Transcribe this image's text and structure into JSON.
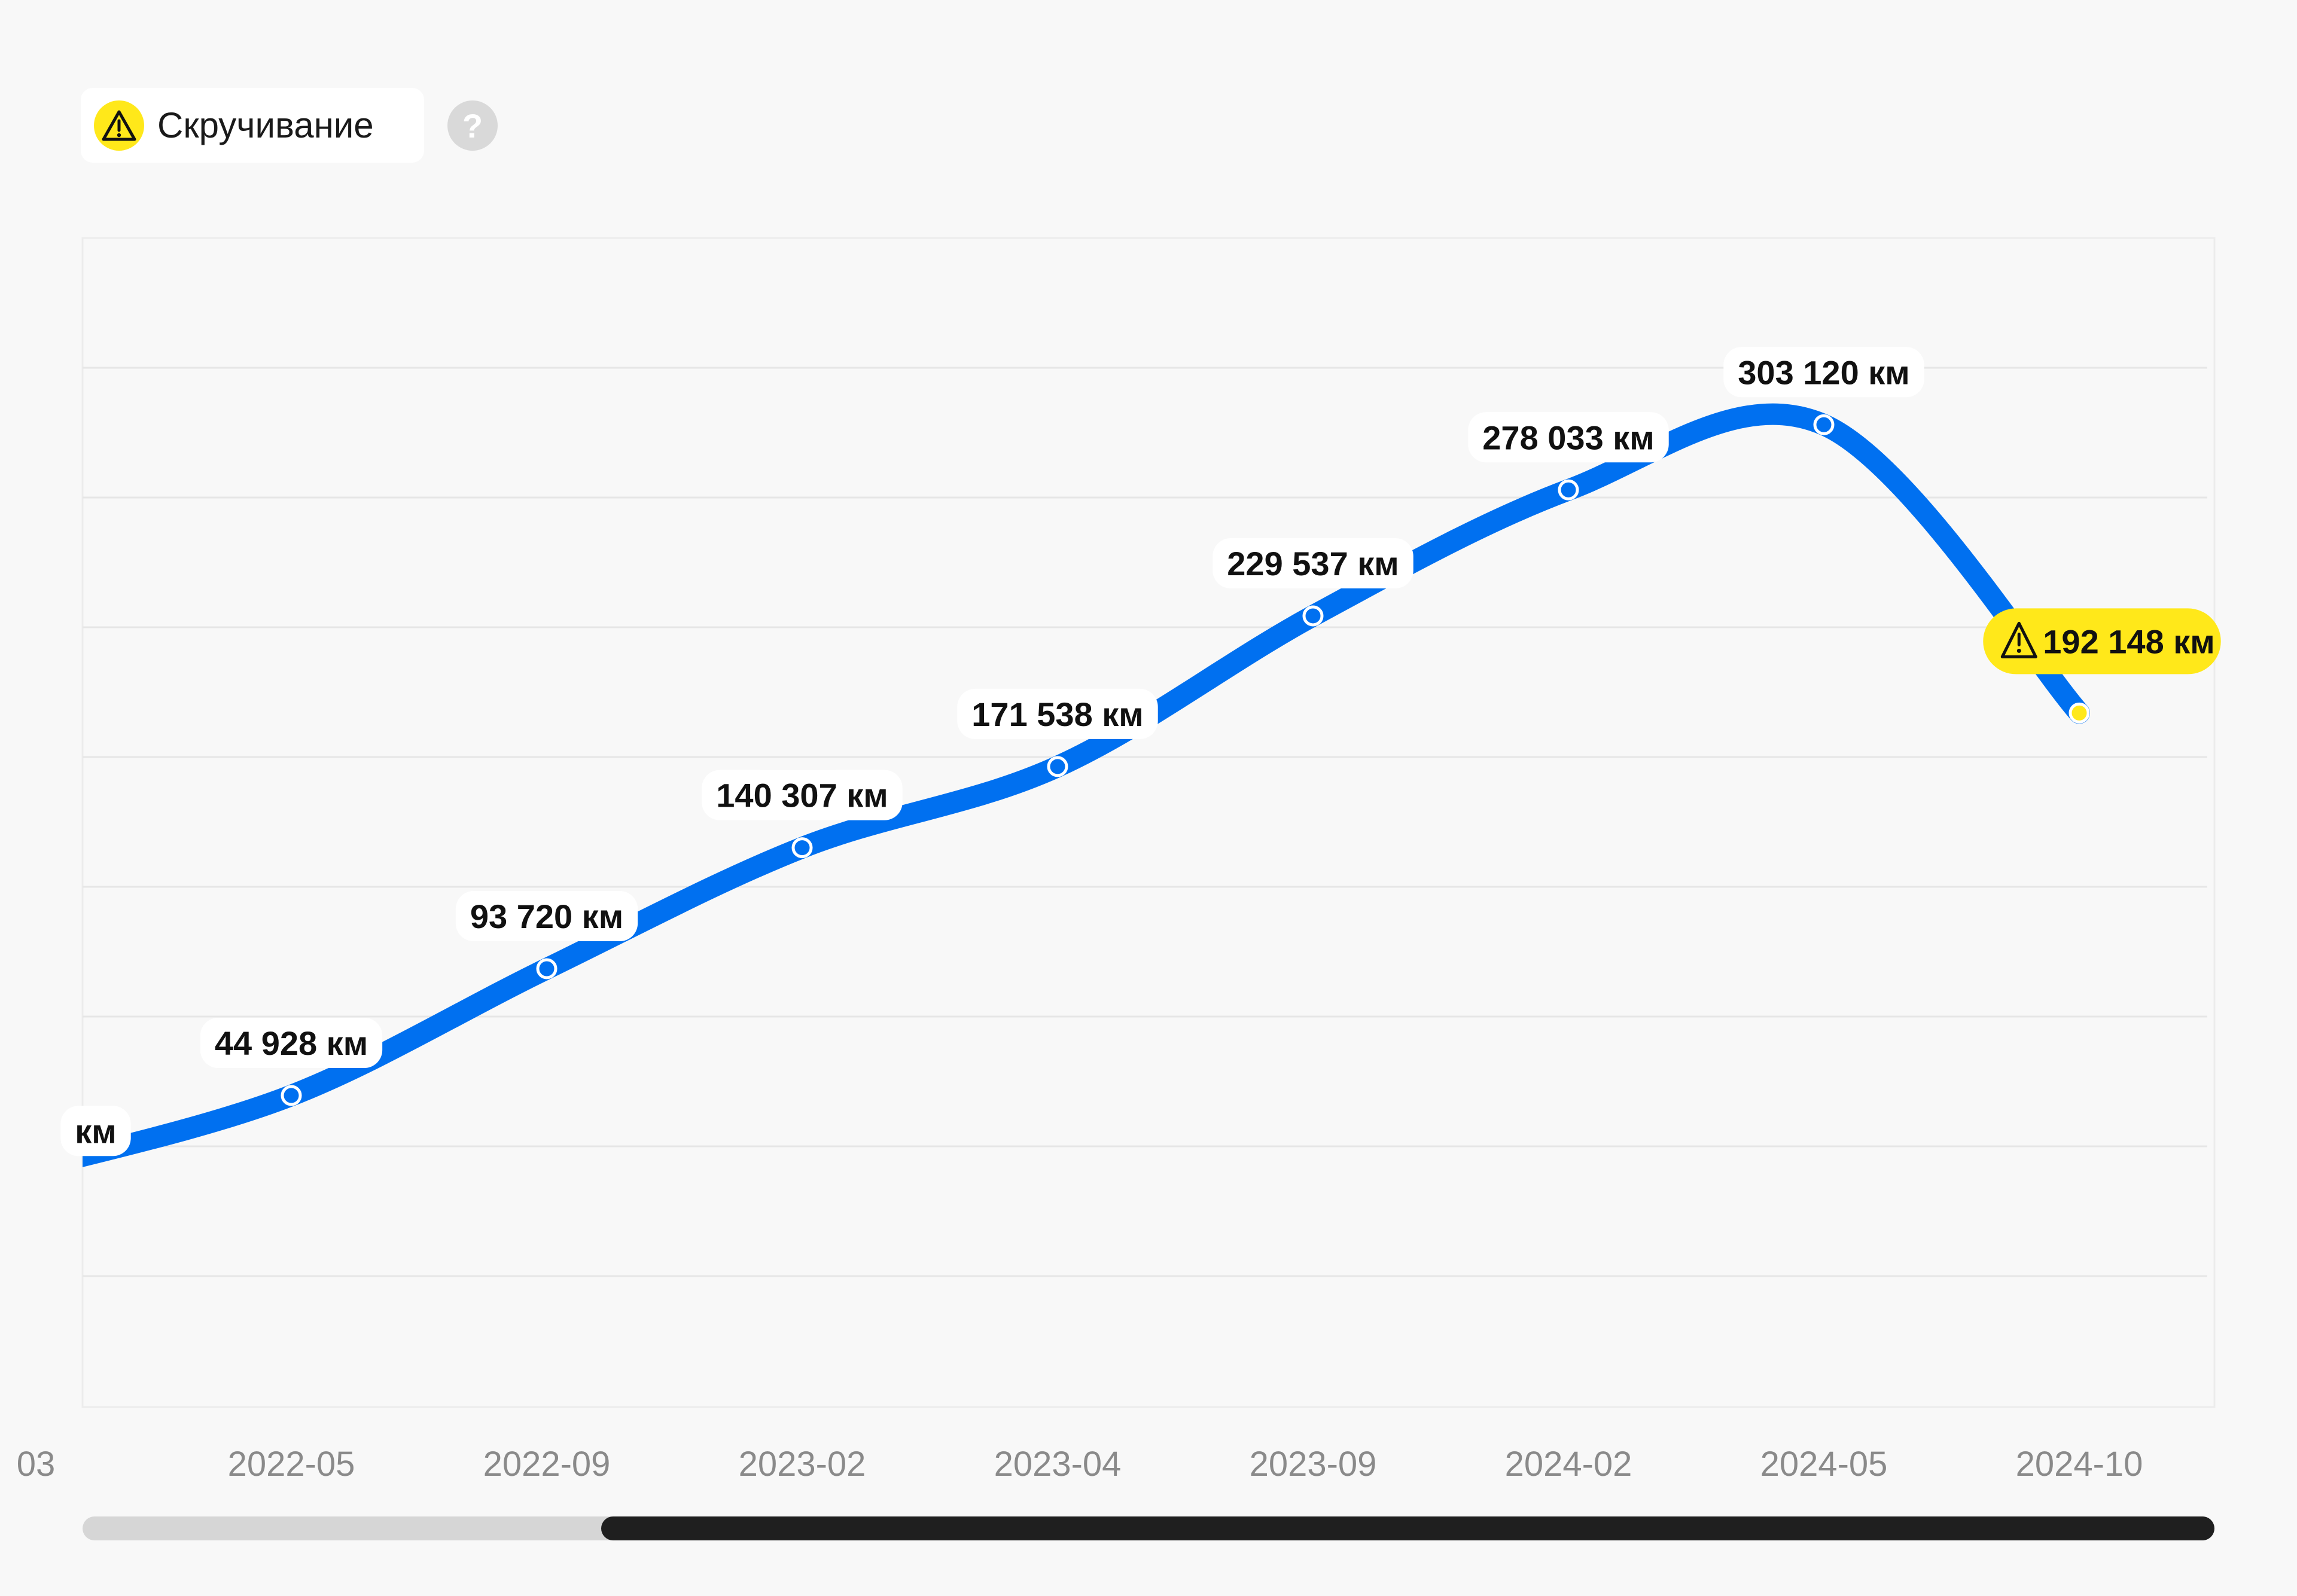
{
  "header": {
    "badge_label": "Скручивание",
    "badge_icon": "warning-icon",
    "help_symbol": "?",
    "help_icon": "help-icon"
  },
  "colors": {
    "line": "#0070f0",
    "warning": "#ffe81a",
    "background": "#f8f8f8",
    "tick_text": "#8a8a8a"
  },
  "chart_data": {
    "type": "line",
    "title": "",
    "xlabel": "",
    "ylabel": "",
    "unit": "км",
    "grid": true,
    "y_axis_labels_visible": false,
    "ylim": [
      -75000,
      375000
    ],
    "visible_window": {
      "first_partial_tick": "03",
      "last_tick": "2024-10"
    },
    "points": [
      {
        "x": "03",
        "y": 17000,
        "label": "км",
        "partial": true
      },
      {
        "x": "2022-05",
        "y": 44928,
        "label": "44 928 км"
      },
      {
        "x": "2022-09",
        "y": 93720,
        "label": "93 720 км"
      },
      {
        "x": "2023-02",
        "y": 140307,
        "label": "140 307 км"
      },
      {
        "x": "2023-04",
        "y": 171538,
        "label": "171 538 км"
      },
      {
        "x": "2023-09",
        "y": 229537,
        "label": "229 537 км"
      },
      {
        "x": "2024-02",
        "y": 278033,
        "label": "278 033 км"
      },
      {
        "x": "2024-05",
        "y": 303120,
        "label": "303 120 км"
      },
      {
        "x": "2024-10",
        "y": 192148,
        "label": "192 148 км",
        "warning": true
      }
    ]
  },
  "scrollbar": {
    "position_fraction": 0.244,
    "size_fraction": 0.756
  }
}
